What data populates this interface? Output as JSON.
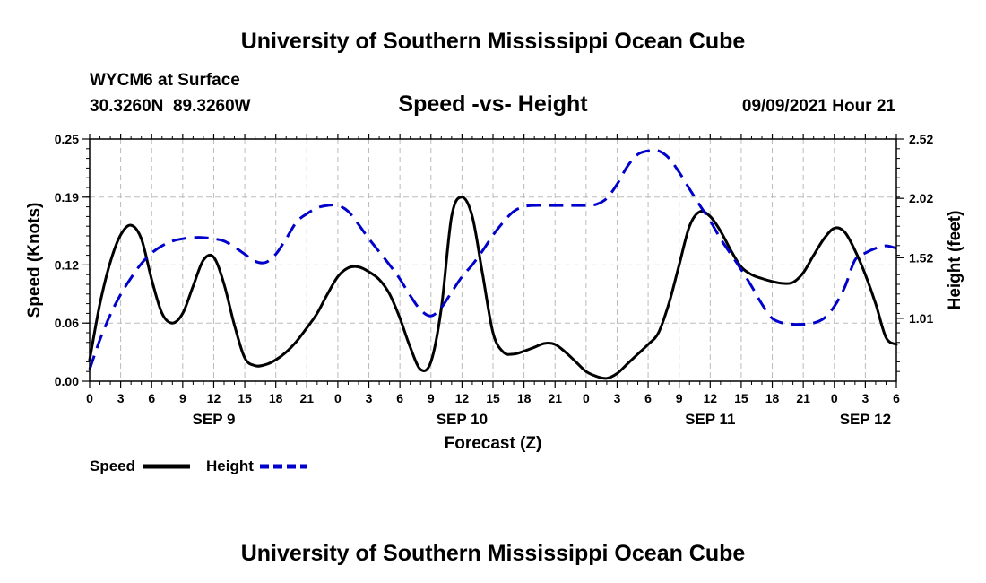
{
  "header": {
    "title": "University of Southern Mississippi Ocean Cube",
    "station": "WYCM6 at Surface",
    "coords": "30.3260N  89.3260W",
    "subtitle": "Speed -vs- Height",
    "datetime": "09/09/2021 Hour 21"
  },
  "footer": {
    "title": "University of Southern Mississippi Ocean Cube"
  },
  "colors": {
    "speed": "#000000",
    "height": "#0000cc",
    "grid": "#bbbbbb"
  },
  "chart_data": {
    "type": "line",
    "title": "Speed -vs- Height",
    "xlabel": "Forecast (Z)",
    "ylabel": "Speed (Knots)",
    "ylabel_right": "Height (feet)",
    "xlim": [
      0,
      78
    ],
    "ylim": [
      0,
      0.25
    ],
    "ylim_right": [
      0.48,
      2.52
    ],
    "grid": true,
    "x_ticks": [
      0,
      3,
      6,
      9,
      12,
      15,
      18,
      21,
      24,
      27,
      30,
      33,
      36,
      39,
      42,
      45,
      48,
      51,
      54,
      57,
      60,
      63,
      66,
      69,
      72,
      75,
      78
    ],
    "x_tick_labels": [
      "0",
      "3",
      "6",
      "9",
      "12",
      "15",
      "18",
      "21",
      "0",
      "3",
      "6",
      "9",
      "12",
      "15",
      "18",
      "21",
      "0",
      "3",
      "6",
      "9",
      "12",
      "15",
      "18",
      "21",
      "0",
      "3",
      "6"
    ],
    "date_labels": [
      {
        "x": 12,
        "label": "SEP 9"
      },
      {
        "x": 36,
        "label": "SEP 10"
      },
      {
        "x": 60,
        "label": "SEP 11"
      },
      {
        "x": 75,
        "label": "SEP 12"
      }
    ],
    "y_ticks": [
      0.0,
      0.06,
      0.12,
      0.19,
      0.25
    ],
    "y_tick_labels": [
      "0.00",
      "0.06",
      "0.12",
      "0.19",
      "0.25"
    ],
    "y_right_ticks": [
      1.01,
      1.52,
      2.02,
      2.52
    ],
    "y_right_tick_labels": [
      "1.01",
      "1.52",
      "2.02",
      "2.52"
    ],
    "legend_position": "bottom-left",
    "series": [
      {
        "name": "Speed",
        "axis": "left",
        "style": "solid",
        "x": [
          0,
          1,
          2,
          3,
          4,
          5,
          6,
          7,
          8,
          9,
          10,
          11,
          12,
          13,
          14,
          15,
          16,
          17,
          18,
          19,
          20,
          21,
          22,
          23,
          24,
          25,
          26,
          27,
          28,
          29,
          30,
          31,
          32,
          33,
          34,
          35,
          36,
          37,
          38,
          39,
          40,
          41,
          42,
          43,
          44,
          45,
          46,
          47,
          48,
          49,
          50,
          51,
          52,
          53,
          54,
          55,
          56,
          57,
          58,
          59,
          60,
          61,
          62,
          63,
          64,
          65,
          66,
          67,
          68,
          69,
          70,
          71,
          72,
          73,
          74,
          75,
          76,
          77,
          78
        ],
        "values": [
          0.022,
          0.08,
          0.123,
          0.151,
          0.161,
          0.147,
          0.105,
          0.07,
          0.06,
          0.07,
          0.098,
          0.125,
          0.128,
          0.1,
          0.058,
          0.024,
          0.016,
          0.017,
          0.022,
          0.03,
          0.041,
          0.055,
          0.07,
          0.09,
          0.108,
          0.117,
          0.118,
          0.113,
          0.105,
          0.09,
          0.065,
          0.035,
          0.012,
          0.02,
          0.075,
          0.17,
          0.19,
          0.17,
          0.11,
          0.05,
          0.03,
          0.028,
          0.031,
          0.035,
          0.039,
          0.038,
          0.03,
          0.02,
          0.01,
          0.005,
          0.003,
          0.008,
          0.018,
          0.028,
          0.038,
          0.05,
          0.08,
          0.12,
          0.16,
          0.175,
          0.17,
          0.155,
          0.135,
          0.118,
          0.11,
          0.106,
          0.103,
          0.101,
          0.102,
          0.112,
          0.13,
          0.147,
          0.158,
          0.154,
          0.135,
          0.11,
          0.08,
          0.045,
          0.038
        ]
      },
      {
        "name": "Height",
        "axis": "right",
        "style": "dashed",
        "x": [
          0,
          1,
          2,
          3,
          4,
          5,
          6,
          7,
          8,
          9,
          10,
          11,
          12,
          13,
          14,
          15,
          16,
          17,
          18,
          19,
          20,
          21,
          22,
          23,
          24,
          25,
          26,
          27,
          28,
          29,
          30,
          31,
          32,
          33,
          34,
          35,
          36,
          37,
          38,
          39,
          40,
          41,
          42,
          43,
          44,
          45,
          46,
          47,
          48,
          49,
          50,
          51,
          52,
          53,
          54,
          55,
          56,
          57,
          58,
          59,
          60,
          61,
          62,
          63,
          64,
          65,
          66,
          67,
          68,
          69,
          70,
          71,
          72,
          73,
          74,
          75,
          76,
          77,
          78
        ],
        "values": [
          0.58,
          0.83,
          1.04,
          1.21,
          1.35,
          1.47,
          1.56,
          1.62,
          1.66,
          1.68,
          1.69,
          1.69,
          1.68,
          1.66,
          1.61,
          1.55,
          1.49,
          1.48,
          1.55,
          1.68,
          1.82,
          1.89,
          1.94,
          1.96,
          1.96,
          1.91,
          1.8,
          1.68,
          1.57,
          1.46,
          1.34,
          1.2,
          1.08,
          1.03,
          1.1,
          1.23,
          1.36,
          1.46,
          1.58,
          1.71,
          1.82,
          1.91,
          1.95,
          1.96,
          1.96,
          1.96,
          1.96,
          1.96,
          1.96,
          1.97,
          2.02,
          2.14,
          2.29,
          2.39,
          2.42,
          2.42,
          2.36,
          2.24,
          2.1,
          1.96,
          1.83,
          1.68,
          1.55,
          1.42,
          1.28,
          1.13,
          1.01,
          0.97,
          0.96,
          0.96,
          0.97,
          1.01,
          1.11,
          1.27,
          1.5,
          1.56,
          1.6,
          1.62,
          1.6
        ]
      }
    ]
  }
}
